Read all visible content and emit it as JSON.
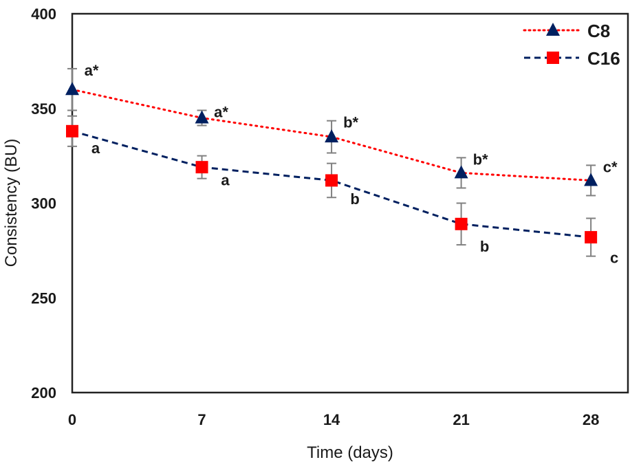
{
  "chart_data": {
    "type": "line",
    "title": "",
    "xlabel": "Time (days)",
    "ylabel": "Consistency (BU)",
    "x": [
      0,
      7,
      14,
      21,
      28
    ],
    "xticks": [
      "0",
      "7",
      "14",
      "21",
      "28"
    ],
    "xlim": [
      0,
      30
    ],
    "ylim": [
      200,
      400
    ],
    "yticks": [
      "200",
      "250",
      "300",
      "350",
      "400"
    ],
    "grid": false,
    "legend_position": "top-right",
    "series": [
      {
        "name": "C8",
        "values": [
          360,
          345,
          335,
          316,
          312
        ],
        "errors": [
          11,
          4,
          8.5,
          8,
          8
        ],
        "labels": [
          "a*",
          "a*",
          "b*",
          "b*",
          "c*"
        ],
        "line_style": "dotted",
        "marker": "triangle",
        "line_color": "#FF0000",
        "marker_color": "#002060"
      },
      {
        "name": "C16",
        "values": [
          338,
          319,
          312,
          289,
          282
        ],
        "errors": [
          8,
          6,
          9,
          11,
          10
        ],
        "labels": [
          "a",
          "a",
          "b",
          "b",
          "c"
        ],
        "line_style": "dashed",
        "marker": "square",
        "line_color": "#002060",
        "marker_color": "#FF0000"
      }
    ],
    "error_bar_color": "#808080"
  }
}
